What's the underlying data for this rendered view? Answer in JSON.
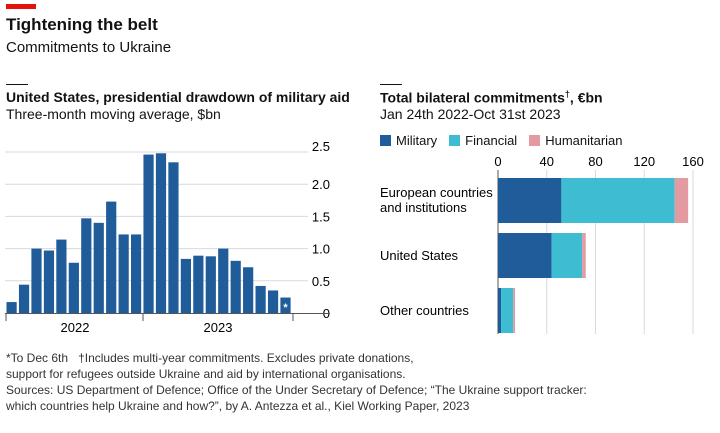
{
  "header": {
    "title": "Tightening the belt",
    "subtitle": "Commitments to Ukraine"
  },
  "colors": {
    "accent": "#e3120b",
    "military": "#1f5c99",
    "financial": "#3ebcd2",
    "humanitarian": "#e39aa0"
  },
  "chart_data": [
    {
      "type": "bar",
      "title": "United States, presidential drawdown of military aid",
      "subtitle": "Three-month moving average, $bn",
      "ylim": [
        0,
        2.5
      ],
      "yticks": [
        "0",
        "0.5",
        "1.0",
        "1.5",
        "2.0",
        "2.5"
      ],
      "ytick_values": [
        0,
        0.5,
        1,
        1.5,
        2,
        2.5
      ],
      "xlabels": [
        "2022",
        "2023"
      ],
      "values": [
        0.17,
        0.44,
        1.0,
        0.97,
        1.14,
        0.78,
        1.47,
        1.4,
        1.73,
        1.22,
        1.22,
        2.46,
        2.48,
        2.34,
        0.84,
        0.89,
        0.88,
        1.0,
        0.81,
        0.71,
        0.42,
        0.35,
        0.24
      ],
      "last_bar_marker": "*"
    },
    {
      "type": "bar",
      "orientation": "horizontal",
      "stacked": true,
      "title": "Total bilateral commitments",
      "title_mark": "†",
      "title_unit": ", €bn",
      "subtitle": "Jan 24th 2022-Oct 31st 2023",
      "xlim": [
        0,
        160
      ],
      "xticks": [
        "0",
        "40",
        "80",
        "120",
        "160"
      ],
      "xtick_values": [
        0,
        40,
        80,
        120,
        160
      ],
      "categories": [
        "European countries and institutions",
        "United States",
        "Other countries"
      ],
      "category_lines": [
        [
          "European countries",
          "and institutions"
        ],
        [
          "United States"
        ],
        [
          "Other countries"
        ]
      ],
      "series": [
        {
          "name": "Military",
          "values": [
            52,
            44,
            2.5
          ]
        },
        {
          "name": "Financial",
          "values": [
            93,
            25,
            10
          ]
        },
        {
          "name": "Humanitarian",
          "values": [
            11,
            3,
            1.5
          ]
        }
      ]
    }
  ],
  "footnotes": {
    "line1a": "*To Dec 6th",
    "line1b": "†Includes multi-year commitments. Excludes private donations,",
    "line2": "support for refugees outside Ukraine and aid by international organisations.",
    "line3": "Sources: US Department of Defence; Office of the Under Secretary of Defence; “The Ukraine support tracker:",
    "line4": "which countries help Ukraine and how?”, by A. Antezza et al., Kiel Working Paper, 2023"
  }
}
